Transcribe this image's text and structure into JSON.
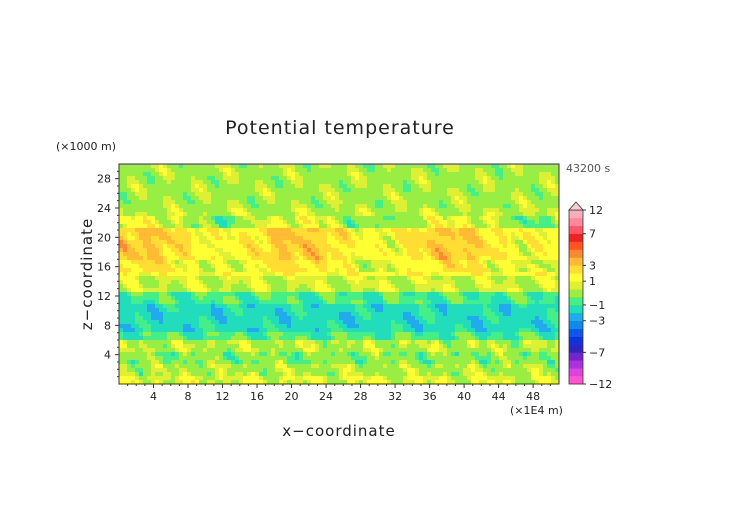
{
  "chart_data": {
    "type": "heatmap",
    "title": "Potential temperature",
    "xlabel": "x−coordinate",
    "ylabel": "z−coordinate",
    "x_unit": "(×1E4 m)",
    "y_unit": "(×1000 m)",
    "time_label": "43200 s",
    "xlim": [
      0,
      51
    ],
    "ylim": [
      0,
      30
    ],
    "x_ticks": [
      4,
      8,
      12,
      16,
      20,
      24,
      28,
      32,
      36,
      40,
      44,
      48
    ],
    "y_ticks": [
      4,
      8,
      12,
      16,
      20,
      24,
      28
    ],
    "colorbar": {
      "levels": [
        -12,
        -10,
        -9,
        -8,
        -7,
        -6,
        -5,
        -4,
        -3,
        -2,
        -1,
        -0.5,
        0.5,
        1,
        2,
        3,
        4,
        5,
        6,
        7,
        8,
        10,
        12
      ],
      "labels": [
        "12",
        "7",
        "3",
        "1",
        "−1",
        "−3",
        "−7",
        "−12"
      ],
      "label_values": [
        12,
        7,
        3,
        1,
        -1,
        -3,
        -7,
        -12
      ],
      "colors": [
        "#ff55cc",
        "#dd44dd",
        "#aa33dd",
        "#7722cc",
        "#3322bb",
        "#1133dd",
        "#1155ee",
        "#1188ee",
        "#22aaee",
        "#22ddbb",
        "#44ee88",
        "#99ee44",
        "#ddf033",
        "#ffff33",
        "#ffdd33",
        "#ffbb33",
        "#ff8833",
        "#ff5522",
        "#ee2222",
        "#ff5566",
        "#ff8899",
        "#ffaabb"
      ],
      "extend": "max"
    },
    "bands": [
      {
        "z": [
          0,
          1.2
        ],
        "value": 0.8
      },
      {
        "z": [
          1.2,
          3
        ],
        "value": 0.3
      },
      {
        "z": [
          3,
          4.5
        ],
        "value": -0.2
      },
      {
        "z": [
          4.5,
          6
        ],
        "value": 0.4
      },
      {
        "z": [
          6,
          7
        ],
        "value": -0.8
      },
      {
        "z": [
          7,
          11
        ],
        "value": -1.5
      },
      {
        "z": [
          11,
          12.5
        ],
        "value": -0.8
      },
      {
        "z": [
          12.5,
          15
        ],
        "value": 0.6
      },
      {
        "z": [
          15,
          17
        ],
        "value": 1.5
      },
      {
        "z": [
          17,
          21.5
        ],
        "value": 2.2
      },
      {
        "z": [
          21.5,
          24
        ],
        "value": 0.4
      },
      {
        "z": [
          24,
          30
        ],
        "value": 0.2
      }
    ]
  }
}
